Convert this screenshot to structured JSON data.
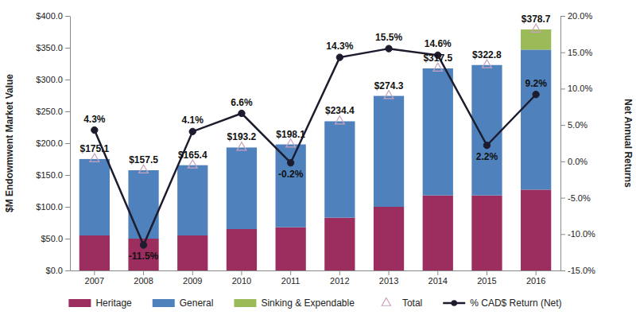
{
  "chart_data": {
    "type": "bar",
    "stacked": true,
    "grid": false,
    "legend": "bottom",
    "y_label": "$M Endowmwent Market Value",
    "y2_label": "Net Annual Returns",
    "categories": [
      "2007",
      "2008",
      "2009",
      "2010",
      "2011",
      "2012",
      "2013",
      "2014",
      "2015",
      "2016"
    ],
    "ylim": [
      0,
      400
    ],
    "yticks": [
      {
        "value": 0,
        "label": "$0.0"
      },
      {
        "value": 50,
        "label": "$50.0"
      },
      {
        "value": 100,
        "label": "$100.0"
      },
      {
        "value": 150,
        "label": "$150.0"
      },
      {
        "value": 200,
        "label": "$200.0"
      },
      {
        "value": 250,
        "label": "$250.0"
      },
      {
        "value": 300,
        "label": "$300.0"
      },
      {
        "value": 350,
        "label": "$350.0"
      },
      {
        "value": 400,
        "label": "$400.0"
      }
    ],
    "y2lim": [
      -15,
      20
    ],
    "y2ticks": [
      {
        "value": -15,
        "label": "-15.0%"
      },
      {
        "value": -10,
        "label": "-10.0%"
      },
      {
        "value": -5,
        "label": "-5.0%"
      },
      {
        "value": 0,
        "label": "0.0%"
      },
      {
        "value": 5,
        "label": "5.0%"
      },
      {
        "value": 10,
        "label": "10.0%"
      },
      {
        "value": 15,
        "label": "15.0%"
      },
      {
        "value": 20,
        "label": "20.0%"
      }
    ],
    "series": [
      {
        "name": "Heritage",
        "type": "bar",
        "color": "#9b2d5f",
        "values": [
          55,
          50,
          55,
          65,
          68,
          83,
          100,
          118,
          118,
          127
        ]
      },
      {
        "name": "General",
        "type": "bar",
        "color": "#4f81bd",
        "values": [
          120.1,
          107.5,
          110.4,
          128.2,
          130.1,
          151.4,
          174.3,
          199.5,
          204.8,
          220
        ]
      },
      {
        "name": "Sinking & Expendable",
        "type": "bar",
        "color": "#9bbb59",
        "values": [
          null,
          null,
          null,
          null,
          null,
          null,
          null,
          null,
          null,
          31.7
        ]
      },
      {
        "name": "Total",
        "type": "scatter",
        "marker": "triangle",
        "color": "#c9a3bd",
        "data_labels": true,
        "values": [
          175.1,
          157.5,
          165.4,
          193.2,
          198.1,
          234.4,
          274.3,
          317.5,
          322.8,
          378.7
        ],
        "value_labels": [
          "$175.1",
          "$157.5",
          "$165.4",
          "$193.2",
          "$198.1",
          "$234.4",
          "$274.3",
          "$317.5",
          "$322.8",
          "$378.7"
        ]
      },
      {
        "name": "% CAD$ Return (Net)",
        "type": "line",
        "axis": "y2",
        "marker": "circle",
        "color": "#1c1c2e",
        "data_labels": true,
        "values": [
          4.3,
          -11.5,
          4.1,
          6.6,
          -0.2,
          14.3,
          15.5,
          14.6,
          2.2,
          9.2
        ],
        "value_labels": [
          "4.3%",
          "-11.5%",
          "4.1%",
          "6.6%",
          "-0.2%",
          "14.3%",
          "15.5%",
          "14.6%",
          "2.2%",
          "9.2%"
        ]
      }
    ]
  }
}
